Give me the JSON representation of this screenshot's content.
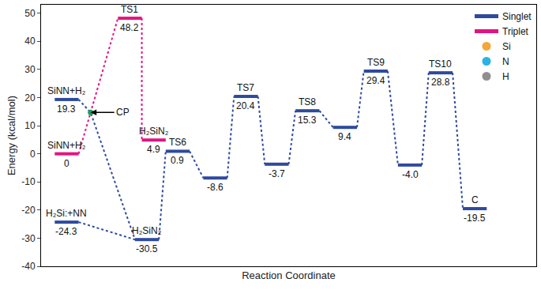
{
  "chart_data": {
    "type": "line",
    "xlabel": "Reaction Coordinate",
    "ylabel": "Energy (kcal/mol)",
    "xlim": [
      0,
      14.5
    ],
    "ylim": [
      -40,
      53
    ],
    "yticks": [
      -40,
      -30,
      -20,
      -10,
      0,
      10,
      20,
      30,
      40,
      50
    ],
    "tick_labels": "y",
    "grid": false,
    "data_labels": true,
    "legend": "upper right",
    "series": [
      {
        "name": "Singlet",
        "color": "#2e4a9e",
        "line_style": "dotted",
        "levels": [
          {
            "label": "SiNN+H₂",
            "x": 0.75,
            "value": 19.3
          },
          {
            "label": "H₂Si:+NN",
            "x": 0.75,
            "value": -24.3
          },
          {
            "label": "H₂SiN₂",
            "x": 3.1,
            "value": -30.5
          },
          {
            "label": "TS6",
            "x": 4.0,
            "value": 0.9
          },
          {
            "label": null,
            "x": 5.1,
            "value": -8.6
          },
          {
            "label": "TS7",
            "x": 6.0,
            "value": 20.4
          },
          {
            "label": null,
            "x": 6.9,
            "value": -3.7
          },
          {
            "label": "TS8",
            "x": 7.8,
            "value": 15.3
          },
          {
            "label": null,
            "x": 8.9,
            "value": 9.4
          },
          {
            "label": "TS9",
            "x": 9.8,
            "value": 29.4
          },
          {
            "label": null,
            "x": 10.8,
            "value": -4.0,
            "value_label": "-4.0"
          },
          {
            "label": "TS10",
            "x": 11.7,
            "value": 28.8
          },
          {
            "label": "C",
            "x": 12.7,
            "value": -19.5
          }
        ],
        "paths": [
          [
            0,
            "CP",
            2
          ],
          [
            1,
            2
          ],
          [
            2,
            3,
            4,
            5,
            6,
            7,
            8,
            9,
            10,
            11,
            12
          ]
        ]
      },
      {
        "name": "Triplet",
        "color": "#e3147f",
        "line_style": "dotted",
        "levels": [
          {
            "label": "SiNN+H₂",
            "x": 0.75,
            "value": 0
          },
          {
            "label": "TS1",
            "x": 2.6,
            "value": 48.2
          },
          {
            "label": "H₂SiN₂",
            "x": 3.3,
            "value": 4.9
          }
        ],
        "paths": [
          [
            0,
            1,
            2
          ]
        ]
      }
    ],
    "crossing_point": {
      "label": "CP",
      "x": 1.45,
      "value": 14.7,
      "color": "#1e9e5a",
      "marker": "circle"
    },
    "atoms": [
      {
        "name": "Si",
        "color": "#f4a637",
        "marker": "circle"
      },
      {
        "name": "N",
        "color": "#2bb3e6",
        "marker": "circle"
      },
      {
        "name": "H",
        "color": "#8f8f8f",
        "marker": "circle"
      }
    ]
  }
}
